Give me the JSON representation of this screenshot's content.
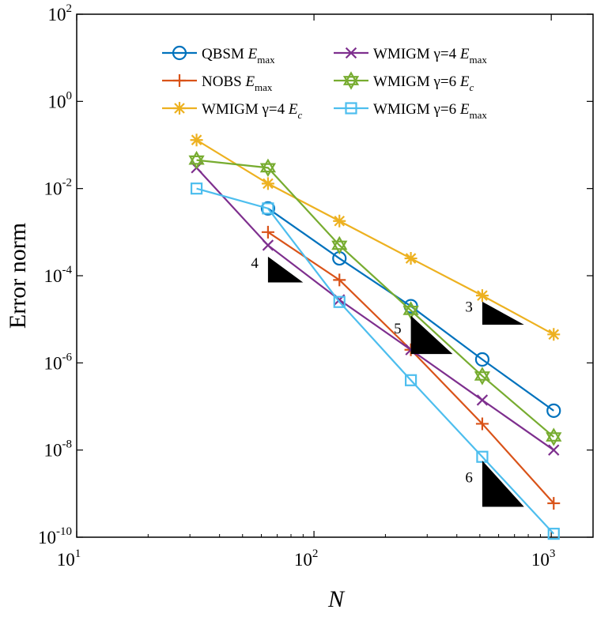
{
  "chart_data": {
    "type": "line",
    "xscale": "log",
    "yscale": "log",
    "xlim": [
      10,
      1500
    ],
    "ylim": [
      1e-10,
      100
    ],
    "xlabel": "N",
    "ylabel": "Error norm",
    "x_ticks": [
      {
        "base": "10",
        "exp": "1",
        "value": 10
      },
      {
        "base": "10",
        "exp": "2",
        "value": 100
      },
      {
        "base": "10",
        "exp": "3",
        "value": 1000
      }
    ],
    "y_ticks": [
      {
        "base": "10",
        "exp": "2",
        "value": 100
      },
      {
        "base": "10",
        "exp": "0",
        "value": 1
      },
      {
        "base": "10",
        "exp": "-2",
        "value": 0.01
      },
      {
        "base": "10",
        "exp": "-4",
        "value": 0.0001
      },
      {
        "base": "10",
        "exp": "-6",
        "value": 1e-06
      },
      {
        "base": "10",
        "exp": "-8",
        "value": 1e-08
      },
      {
        "base": "10",
        "exp": "-10",
        "value": 1e-10
      }
    ],
    "legend_position": "top",
    "series": [
      {
        "name": "QBSM E_max",
        "label_main": "QBSM ",
        "label_var": "E",
        "label_sub": "max",
        "color": "#0072BD",
        "marker": "circle",
        "x": [
          64,
          128,
          256,
          512,
          1024
        ],
        "y": [
          0.0035,
          0.00025,
          2e-05,
          1.2e-06,
          8e-08
        ]
      },
      {
        "name": "NOBS E_max",
        "label_main": "NOBS ",
        "label_var": "E",
        "label_sub": "max",
        "color": "#D95319",
        "marker": "plus",
        "x": [
          64,
          128,
          256,
          512,
          1024
        ],
        "y": [
          0.001,
          8e-05,
          2e-06,
          4e-08,
          6e-10
        ]
      },
      {
        "name": "WMIGM γ=4 E_c",
        "label_main": "WMIGM γ=4 ",
        "label_var": "E",
        "label_sub": "c",
        "color": "#EDB120",
        "marker": "asterisk",
        "x": [
          32,
          64,
          128,
          256,
          512,
          1024
        ],
        "y": [
          0.13,
          0.013,
          0.0018,
          0.00025,
          3.5e-05,
          4.5e-06
        ]
      },
      {
        "name": "WMIGM γ=4 E_max",
        "label_main": "WMIGM γ=4 ",
        "label_var": "E",
        "label_sub": "max",
        "color": "#7E2F8E",
        "marker": "x",
        "x": [
          32,
          64,
          128,
          256,
          512,
          1024
        ],
        "y": [
          0.03,
          0.0005,
          2.8e-05,
          2e-06,
          1.4e-07,
          1e-08
        ]
      },
      {
        "name": "WMIGM γ=6 E_c",
        "label_main": "WMIGM γ=6 ",
        "label_var": "E",
        "label_sub": "c",
        "color": "#77AC30",
        "marker": "hexagram",
        "x": [
          32,
          64,
          128,
          256,
          512,
          1024
        ],
        "y": [
          0.045,
          0.03,
          0.0005,
          1.6e-05,
          5e-07,
          2e-08
        ]
      },
      {
        "name": "WMIGM γ=6 E_max",
        "label_main": "WMIGM γ=6 ",
        "label_var": "E",
        "label_sub": "max",
        "color": "#4DBEEE",
        "marker": "square",
        "x": [
          32,
          64,
          128,
          256,
          512,
          1024
        ],
        "y": [
          0.01,
          0.0035,
          2.5e-05,
          4e-07,
          7e-09,
          1.2e-10
        ]
      }
    ],
    "slope_triangles": [
      {
        "label": "4",
        "x0": 64,
        "x1": 90,
        "y": 7e-05,
        "slope": 4
      },
      {
        "label": "5",
        "x0": 256,
        "x1": 384,
        "y": 1.6e-06,
        "slope": 5
      },
      {
        "label": "3",
        "x0": 512,
        "x1": 768,
        "y": 7.5e-06,
        "slope": 3
      },
      {
        "label": "6",
        "x0": 512,
        "x1": 768,
        "y": 5e-10,
        "slope": 6
      }
    ]
  }
}
